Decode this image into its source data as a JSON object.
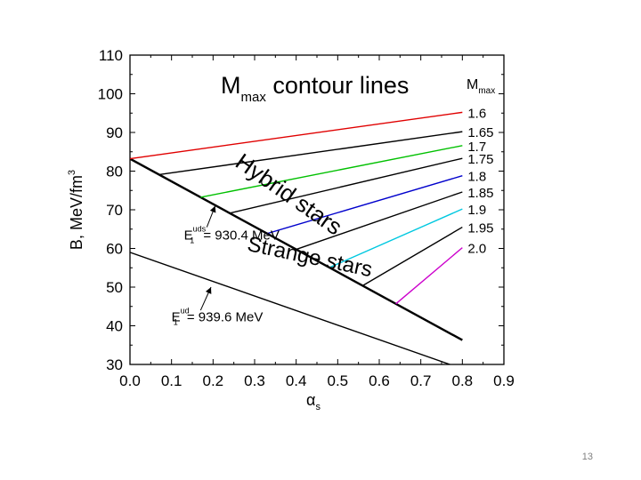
{
  "page_number": "13",
  "chart_data": {
    "type": "line",
    "title": {
      "main": "M",
      "sub": "max",
      "rest": " contour lines"
    },
    "xlabel": {
      "symbol": "α",
      "sub": "s"
    },
    "ylabel": {
      "text": "B,  MeV/fm",
      "sup": "3"
    },
    "xlim": [
      0.0,
      0.9
    ],
    "ylim": [
      30,
      110
    ],
    "xticks": [
      "0.0",
      "0.1",
      "0.2",
      "0.3",
      "0.4",
      "0.5",
      "0.6",
      "0.7",
      "0.8",
      "0.9"
    ],
    "yticks": [
      "30",
      "40",
      "50",
      "60",
      "70",
      "80",
      "90",
      "100",
      "110"
    ],
    "legend_title": {
      "main": "M",
      "sub": "max"
    },
    "boundary_lines": [
      {
        "name": "uds",
        "x": [
          0.0,
          0.8
        ],
        "y": [
          83.2,
          36.3
        ]
      },
      {
        "name": "ud",
        "x": [
          0.0,
          0.77
        ],
        "y": [
          59.0,
          30.0
        ]
      }
    ],
    "contours": [
      {
        "label": "1.6",
        "color": "#e00000",
        "x0": 0.0,
        "x1": 0.8,
        "y1": 95.2
      },
      {
        "label": "1.65",
        "color": "#000000",
        "x0": 0.07,
        "x1": 0.8,
        "y1": 90.2
      },
      {
        "label": "1.7",
        "color": "#00c000",
        "x0": 0.17,
        "x1": 0.8,
        "y1": 86.6
      },
      {
        "label": "1.75",
        "color": "#000000",
        "x0": 0.24,
        "x1": 0.8,
        "y1": 83.3
      },
      {
        "label": "1.8",
        "color": "#0000cc",
        "x0": 0.33,
        "x1": 0.8,
        "y1": 78.8
      },
      {
        "label": "1.85",
        "color": "#000000",
        "x0": 0.4,
        "x1": 0.8,
        "y1": 74.6
      },
      {
        "label": "1.9",
        "color": "#00c8e0",
        "x0": 0.48,
        "x1": 0.8,
        "y1": 70.2
      },
      {
        "label": "1.95",
        "color": "#000000",
        "x0": 0.56,
        "x1": 0.8,
        "y1": 65.5
      },
      {
        "label": "2.0",
        "color": "#cc00cc",
        "x0": 0.64,
        "x1": 0.8,
        "y1": 60.2
      }
    ],
    "annotations": [
      {
        "text": "Hybrid stars",
        "x": 0.25,
        "y": 81.5,
        "rotate": 35,
        "size": 26
      },
      {
        "text": "Strange stars",
        "x": 0.28,
        "y": 59.5,
        "rotate": 12,
        "size": 24
      },
      {
        "main": "E",
        "sub": "1",
        "sup": "uds",
        "rest": " = 930.4 MeV",
        "x": 0.13,
        "y": 62.3,
        "arrow": {
          "from": [
            0.185,
            65.5
          ],
          "to": [
            0.205,
            71.0
          ]
        }
      },
      {
        "main": "E",
        "sub": "1",
        "sup": "ud",
        "rest": " = 939.6 MeV",
        "x": 0.1,
        "y": 41.2,
        "arrow": {
          "from": [
            0.17,
            44.0
          ],
          "to": [
            0.195,
            50.0
          ]
        }
      }
    ]
  }
}
